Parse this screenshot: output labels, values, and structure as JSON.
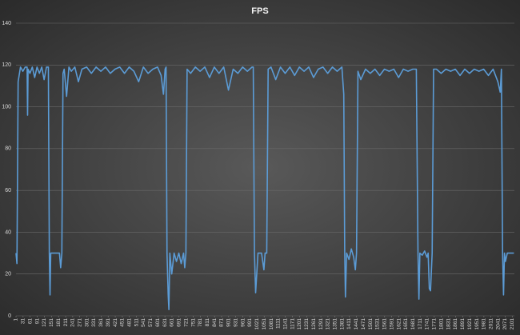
{
  "chart_data": {
    "type": "line",
    "title": "FPS",
    "x": [
      1,
      5,
      10,
      20,
      30,
      40,
      48,
      50,
      52,
      60,
      70,
      80,
      90,
      100,
      110,
      120,
      130,
      138,
      142,
      145,
      148,
      160,
      175,
      185,
      190,
      195,
      200,
      205,
      215,
      225,
      235,
      250,
      265,
      280,
      300,
      320,
      340,
      360,
      380,
      400,
      420,
      440,
      460,
      480,
      500,
      520,
      540,
      560,
      580,
      600,
      615,
      625,
      632,
      636,
      640,
      645,
      648,
      652,
      660,
      670,
      680,
      690,
      700,
      710,
      715,
      720,
      725,
      740,
      760,
      780,
      800,
      820,
      840,
      860,
      880,
      900,
      920,
      940,
      960,
      980,
      1000,
      1005,
      1010,
      1015,
      1025,
      1040,
      1050,
      1055,
      1062,
      1068,
      1080,
      1100,
      1120,
      1140,
      1160,
      1180,
      1200,
      1220,
      1240,
      1260,
      1280,
      1300,
      1320,
      1340,
      1360,
      1380,
      1388,
      1392,
      1395,
      1400,
      1410,
      1420,
      1430,
      1437,
      1442,
      1448,
      1460,
      1480,
      1500,
      1520,
      1540,
      1560,
      1580,
      1600,
      1620,
      1640,
      1660,
      1680,
      1695,
      1702,
      1706,
      1710,
      1720,
      1730,
      1740,
      1745,
      1750,
      1755,
      1762,
      1768,
      1780,
      1800,
      1820,
      1840,
      1860,
      1880,
      1900,
      1920,
      1940,
      1960,
      1980,
      2000,
      2020,
      2040,
      2050,
      2055,
      2060,
      2064,
      2068,
      2072,
      2080,
      2090,
      2100,
      2108
    ],
    "series": [
      {
        "name": "FPS",
        "color": "#5b9bd5",
        "values": [
          30,
          25,
          112,
          119,
          117,
          119,
          119,
          96,
          118,
          116,
          119,
          114,
          119,
          116,
          119,
          113,
          119,
          119,
          30,
          10,
          30,
          30,
          30,
          30,
          23,
          30,
          116,
          118,
          105,
          119,
          117,
          119,
          112,
          118,
          119,
          116,
          119,
          117,
          119,
          116,
          118,
          119,
          116,
          119,
          117,
          112,
          119,
          116,
          118,
          119,
          115,
          106,
          118,
          119,
          30,
          10,
          3,
          30,
          20,
          30,
          26,
          30,
          25,
          30,
          23,
          30,
          118,
          116,
          119,
          117,
          119,
          114,
          119,
          116,
          119,
          108,
          118,
          116,
          119,
          117,
          119,
          119,
          30,
          11,
          30,
          30,
          22,
          30,
          30,
          118,
          119,
          113,
          119,
          116,
          119,
          115,
          119,
          117,
          119,
          114,
          118,
          119,
          116,
          119,
          117,
          119,
          106,
          30,
          9,
          30,
          27,
          32,
          28,
          22,
          30,
          117,
          113,
          118,
          116,
          118,
          115,
          118,
          117,
          118,
          114,
          118,
          117,
          118,
          118,
          30,
          8,
          30,
          29,
          31,
          28,
          30,
          13,
          12,
          30,
          118,
          118,
          116,
          118,
          117,
          118,
          115,
          118,
          116,
          118,
          117,
          118,
          115,
          118,
          112,
          107,
          118,
          30,
          10,
          30,
          26,
          30,
          30,
          30,
          30
        ]
      }
    ],
    "xlim": [
      1,
      2110
    ],
    "xticks": [
      1,
      31,
      61,
      91,
      121,
      151,
      181,
      211,
      241,
      271,
      301,
      331,
      361,
      391,
      421,
      451,
      481,
      511,
      541,
      571,
      601,
      631,
      661,
      691,
      721,
      751,
      781,
      811,
      841,
      871,
      901,
      931,
      961,
      991,
      1021,
      1051,
      1081,
      1111,
      1141,
      1171,
      1201,
      1231,
      1261,
      1291,
      1321,
      1351,
      1381,
      1411,
      1441,
      1471,
      1501,
      1531,
      1561,
      1591,
      1621,
      1651,
      1681,
      1711,
      1741,
      1771,
      1801,
      1831,
      1861,
      1891,
      1921,
      1951,
      1981,
      2011,
      2041,
      2071,
      2101
    ],
    "ylim": [
      0,
      140
    ],
    "yticks": [
      0,
      20,
      40,
      60,
      80,
      100,
      120,
      140
    ],
    "grid": true
  }
}
